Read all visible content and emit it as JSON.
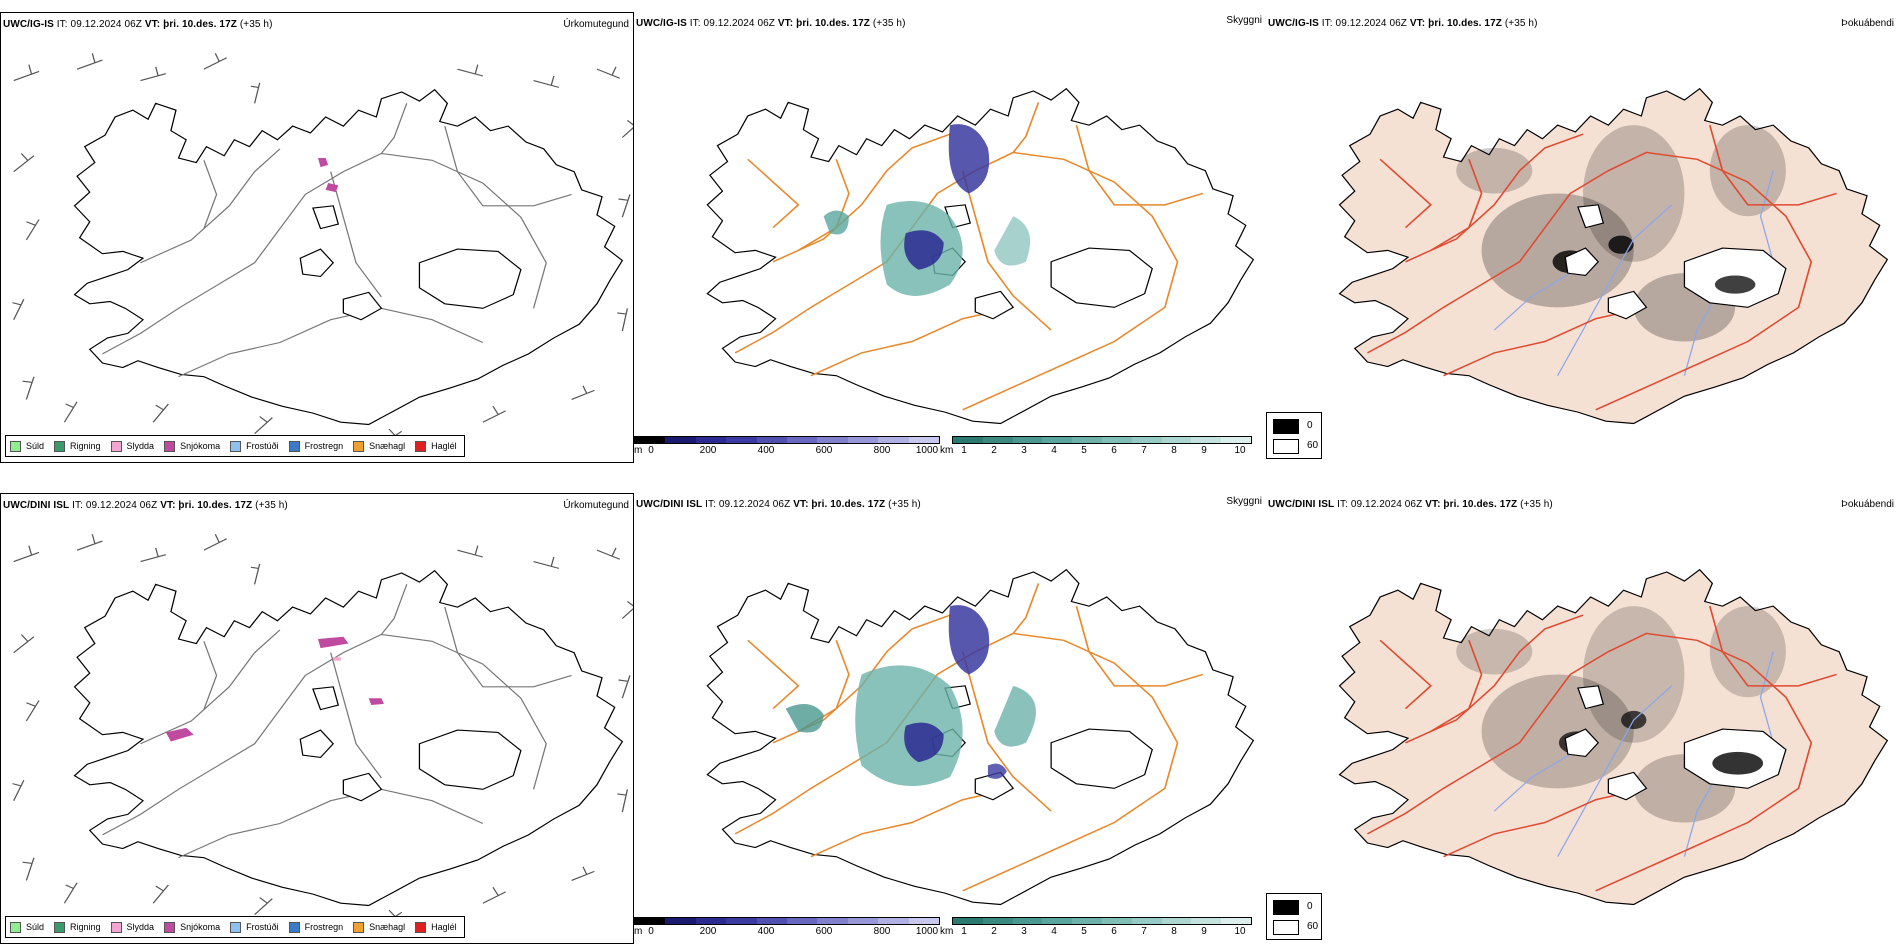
{
  "rows": [
    {
      "model": "UWC/IG-IS",
      "it_label": "IT:",
      "it_value": "09.12.2024 06Z",
      "vt_label": "VT:",
      "vt_value": "þri. 10.des. 17Z",
      "lead": "(+35 h)"
    },
    {
      "model": "UWC/DINI ISL",
      "it_label": "IT:",
      "it_value": "09.12.2024 06Z",
      "vt_label": "VT:",
      "vt_value": "þri. 10.des. 17Z",
      "lead": "(+35 h)"
    }
  ],
  "panel_types": {
    "precip": "Úrkomutegund",
    "visibility": "Skyggni",
    "fog": "Þokuábendi"
  },
  "precip_legend": [
    {
      "label": "Súld",
      "color": "#90ee90"
    },
    {
      "label": "Rigning",
      "color": "#3a9a6a"
    },
    {
      "label": "Slydda",
      "color": "#f4a6d2"
    },
    {
      "label": "Snjókoma",
      "color": "#c04aa0"
    },
    {
      "label": "Frostúði",
      "color": "#8ec0f0"
    },
    {
      "label": "Frostregn",
      "color": "#3a7ac8"
    },
    {
      "label": "Snæhagl",
      "color": "#f0a030"
    },
    {
      "label": "Haglél",
      "color": "#e02020"
    }
  ],
  "vis_m_bar": {
    "unit": "m",
    "ticks": [
      "0",
      "200",
      "400",
      "600",
      "800",
      "1000"
    ],
    "colors": [
      "#000000",
      "#1a1a6e",
      "#2a2a90",
      "#3a3aa0",
      "#5050b0",
      "#6868c0",
      "#8080cc",
      "#9898d8",
      "#b0b0e2",
      "#c8c8ee"
    ]
  },
  "vis_km_bar": {
    "unit": "km",
    "ticks": [
      "1",
      "2",
      "3",
      "4",
      "5",
      "6",
      "7",
      "8",
      "9",
      "10"
    ],
    "colors": [
      "#2a7a70",
      "#3a8a80",
      "#4a9890",
      "#5aa69e",
      "#6cb2aa",
      "#80beb6",
      "#96cac4",
      "#acd6d0",
      "#c4e2de",
      "#dcefec"
    ]
  },
  "fog_legend": [
    {
      "label": "0",
      "color": "#000000"
    },
    {
      "label": "60",
      "color": "#ffffff"
    }
  ]
}
